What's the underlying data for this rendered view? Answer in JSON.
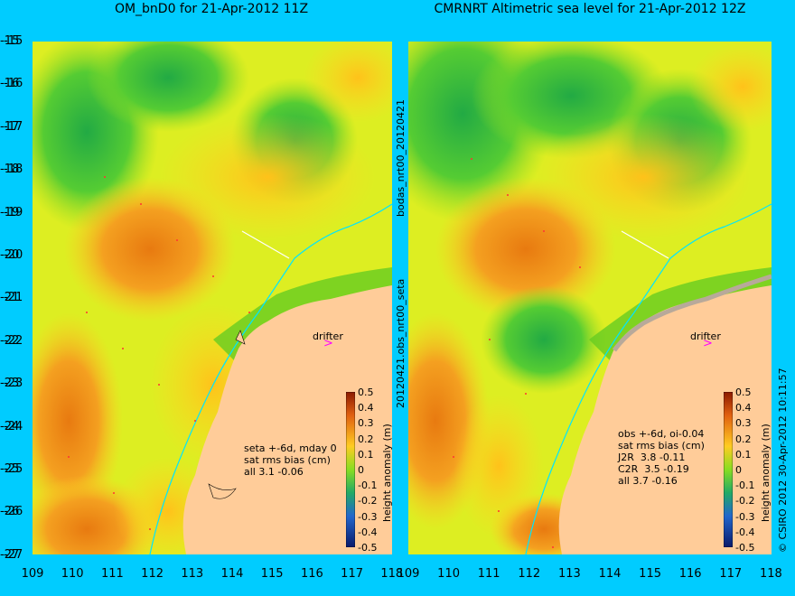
{
  "left_panel": {
    "title": "OM_bnD0 for 21-Apr-2012 11Z",
    "stats": "seta +-6d, mday 0\nsat rms bias (cm)\nall 3.1 -0.06",
    "drifter": "drifter"
  },
  "right_panel": {
    "title": "CMRNRT Altimetric sea level  for 21-Apr-2012 12Z",
    "stats": "obs +-6d, oi-0.04\nsat rms bias (cm)\nJ2R  3.8 -0.11\nC2R  3.5 -0.19\nall 3.7 -0.16",
    "drifter": "drifter"
  },
  "side_label_top": "bodas_nrt00_20120421",
  "side_label_bottom": "20120421.obs_nrt00_seta",
  "colorbar": {
    "ticks": [
      "0.5",
      "0.4",
      "0.3",
      "0.2",
      "0.1",
      "0",
      "-0.1",
      "-0.2",
      "-0.3",
      "-0.4",
      "-0.5"
    ],
    "label": "height anomaly (m)"
  },
  "y_ticks": [
    "-15",
    "-16",
    "-17",
    "-18",
    "-19",
    "-20",
    "-21",
    "-22",
    "-23",
    "-24",
    "-25",
    "-26",
    "-27"
  ],
  "x_ticks_left": [
    "109",
    "110",
    "111",
    "112",
    "113",
    "114",
    "115",
    "116",
    "117",
    "118"
  ],
  "x_ticks_right": [
    "109",
    "110",
    "111",
    "112",
    "113",
    "114",
    "115",
    "116",
    "117",
    "118"
  ],
  "copyright": "© CSIRO 2012  30-Apr-2012 10:11:57",
  "colors": {
    "background": "#00ccff",
    "land": "#ffcc99",
    "drifter_marker": "#ff00ff",
    "coast_line": "#00ffff"
  }
}
